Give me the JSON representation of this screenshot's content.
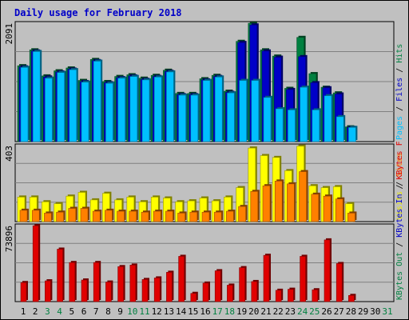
{
  "chart_data": {
    "type": "bar",
    "title": "Daily usage for February 2018",
    "categories": [
      "1",
      "2",
      "3",
      "4",
      "5",
      "6",
      "7",
      "8",
      "9",
      "10",
      "11",
      "12",
      "13",
      "14",
      "15",
      "16",
      "17",
      "18",
      "19",
      "20",
      "21",
      "22",
      "23",
      "24",
      "25",
      "26",
      "27",
      "28",
      "29",
      "30",
      "31"
    ],
    "weekend_days": [
      3,
      4,
      10,
      11,
      17,
      18,
      24,
      25,
      31
    ],
    "panels": [
      {
        "id": "top",
        "ymax_label": "2091",
        "ymax": 2091,
        "right_label": [
          {
            "text": "Pages",
            "color": "#00c0ff"
          },
          {
            "text": " / ",
            "color": "#000000"
          },
          {
            "text": "Files",
            "color": "#0000c8"
          },
          {
            "text": " / ",
            "color": "#000000"
          },
          {
            "text": "Hits",
            "color": "#008040"
          }
        ],
        "series": [
          {
            "name": "Hits",
            "color": "#008040",
            "values": [
              1340,
              1620,
              1160,
              1250,
              1300,
              1080,
              1450,
              1060,
              1150,
              1180,
              1120,
              1170,
              1260,
              850,
              850,
              1110,
              1170,
              890,
              1770,
              2090,
              1620,
              1510,
              940,
              1840,
              1200,
              960,
              860,
              260,
              0,
              0,
              0
            ]
          },
          {
            "name": "Files",
            "color": "#0000c8",
            "values": [
              1320,
              1600,
              1140,
              1230,
              1280,
              1060,
              1430,
              1040,
              1130,
              1160,
              1100,
              1150,
              1240,
              830,
              830,
              1090,
              1150,
              870,
              1750,
              2060,
              1600,
              1490,
              920,
              1500,
              1040,
              950,
              840,
              250,
              0,
              0,
              0
            ]
          },
          {
            "name": "Pages",
            "color": "#00c0ff",
            "values": [
              1310,
              1590,
              1120,
              1220,
              1270,
              1050,
              1420,
              1030,
              1120,
              1150,
              1090,
              1140,
              1230,
              820,
              820,
              1080,
              1140,
              860,
              1080,
              1080,
              780,
              580,
              560,
              960,
              560,
              810,
              440,
              250,
              0,
              0,
              0
            ]
          }
        ]
      },
      {
        "id": "mid",
        "ymax_label": "403",
        "ymax": 403,
        "right_label": [
          {
            "text": "Visits",
            "color": "#e6e600"
          },
          {
            "text": " / ",
            "color": "#000000"
          },
          {
            "text": "Sites",
            "color": "#ff8000"
          }
        ],
        "series": [
          {
            "name": "Visits",
            "color": "#ffff00",
            "values": [
              130,
              130,
              105,
              95,
              135,
              155,
              115,
              150,
              115,
              130,
              105,
              130,
              125,
              105,
              110,
              125,
              110,
              130,
              180,
              390,
              350,
              340,
              270,
              400,
              190,
              180,
              185,
              95,
              0,
              0,
              0
            ]
          },
          {
            "name": "Sites",
            "color": "#ff8000",
            "values": [
              60,
              60,
              45,
              50,
              70,
              70,
              55,
              60,
              55,
              55,
              50,
              55,
              55,
              45,
              50,
              50,
              50,
              55,
              80,
              160,
              190,
              215,
              200,
              265,
              145,
              135,
              120,
              45,
              0,
              0,
              0
            ]
          }
        ]
      },
      {
        "id": "bot",
        "ymax_label": "73896",
        "ymax": 73896,
        "right_label": [
          {
            "text": "KBytes Out",
            "color": "#008040"
          },
          {
            "text": " / ",
            "color": "#000000"
          },
          {
            "text": "KBytes In",
            "color": "#0000c8"
          },
          {
            "text": " / ",
            "color": "#000000"
          },
          {
            "text": "KBytes F",
            "color": "#e00000"
          }
        ],
        "series": [
          {
            "name": "KB F",
            "color": "#e00000",
            "values": [
              18500,
              73800,
              20200,
              51000,
              38000,
              21000,
              38000,
              19000,
              34000,
              35500,
              21500,
              23000,
              28500,
              44000,
              8000,
              18000,
              30000,
              16000,
              33000,
              19500,
              45000,
              11000,
              12000,
              44000,
              11500,
              60000,
              37000,
              6000,
              0,
              0,
              0
            ]
          }
        ]
      }
    ]
  }
}
